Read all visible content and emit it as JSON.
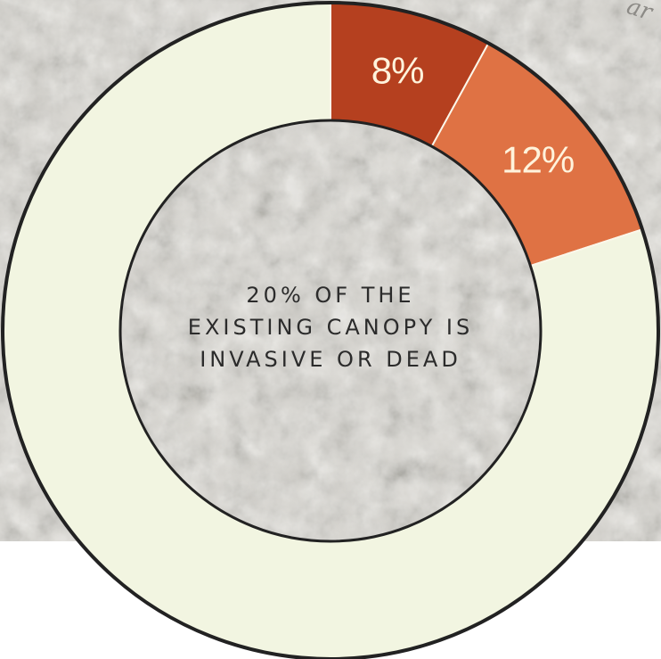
{
  "colors": {
    "remaining": "#f2f5e1",
    "dead": "#b5401f",
    "invasive": "#df7244",
    "outline": "#222222",
    "label": "#fff3dc",
    "aerial_base": "#d6d4cf",
    "aerial_dark": "#b3b0aa",
    "aerial_light": "#ecebe7"
  },
  "background": {
    "corner_text": "ar"
  },
  "chart_data": {
    "type": "pie",
    "donut": true,
    "start_angle_deg": 0,
    "direction": "clockwise",
    "slices": [
      {
        "value": 8,
        "label": "8%",
        "color": "#b5401f"
      },
      {
        "value": 12,
        "label": "12%",
        "color": "#df7244"
      },
      {
        "value": 80,
        "label": "",
        "color": "#f2f5e1"
      }
    ],
    "center_text": [
      "20% OF THE",
      "EXISTING CANOPY IS",
      "INVASIVE OR DEAD"
    ],
    "legend": "none"
  }
}
